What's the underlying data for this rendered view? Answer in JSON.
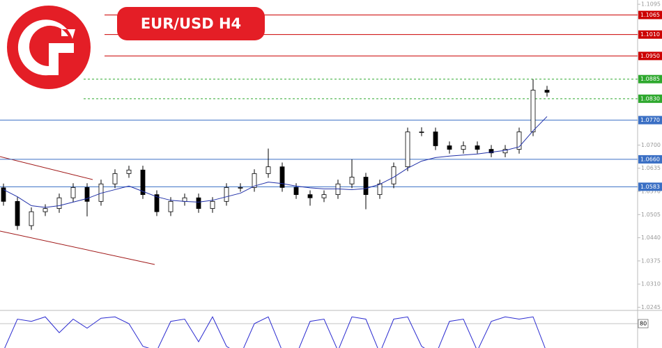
{
  "chart_data": {
    "type": "candlestick",
    "title": "EUR/USD  H4",
    "ylim": [
      1.024,
      1.1107
    ],
    "yticks": [
      {
        "value": 1.1095,
        "label": "1.1095"
      },
      {
        "value": 1.07,
        "label": "1.0700"
      },
      {
        "value": 1.0635,
        "label": "1.0635"
      },
      {
        "value": 1.057,
        "label": "1.0570"
      },
      {
        "value": 1.0505,
        "label": "1.0505"
      },
      {
        "value": 1.044,
        "label": "1.0440"
      },
      {
        "value": 1.0375,
        "label": "1.0375"
      },
      {
        "value": 1.031,
        "label": "1.0310"
      },
      {
        "value": 1.0245,
        "label": "1.0245"
      }
    ],
    "levels": [
      {
        "value": 1.1065,
        "label": "1.1065",
        "color": "#cc0000",
        "dashed": false
      },
      {
        "value": 1.101,
        "label": "1.1010",
        "color": "#cc0000",
        "dashed": false
      },
      {
        "value": 1.095,
        "label": "1.0950",
        "color": "#cc0000",
        "dashed": false
      },
      {
        "value": 1.0885,
        "label": "1.0885",
        "color": "#2ea82e",
        "dashed": true
      },
      {
        "value": 1.083,
        "label": "1.0830",
        "color": "#2ea82e",
        "dashed": true
      },
      {
        "value": 1.077,
        "label": "1.0770",
        "color": "#3a6fc4",
        "dashed": false
      },
      {
        "value": 1.066,
        "label": "1.0660",
        "color": "#3a6fc4",
        "dashed": false
      },
      {
        "value": 1.0583,
        "label": "1.0583",
        "color": "#3a6fc4",
        "dashed": false
      }
    ],
    "open": [
      1.058,
      1.0542,
      1.0474,
      1.0513,
      1.0522,
      1.0552,
      1.0581,
      1.0542,
      1.0591,
      1.062,
      1.063,
      1.0561,
      1.0513,
      1.0542,
      1.0552,
      1.0522,
      1.0542,
      1.0581,
      1.0581,
      1.062,
      1.0639,
      1.0581,
      1.0561,
      1.0552,
      1.0561,
      1.0591,
      1.061,
      1.0561,
      1.0591,
      1.0639,
      1.0737,
      1.0737,
      1.0698,
      1.0688,
      1.0698,
      1.0688,
      1.0678,
      1.0688,
      1.0737,
      1.0854
    ],
    "high": [
      1.0592,
      1.0554,
      1.0525,
      1.0534,
      1.0564,
      1.0593,
      1.0593,
      1.0603,
      1.0632,
      1.0642,
      1.0642,
      1.0573,
      1.0554,
      1.0564,
      1.0564,
      1.0554,
      1.0593,
      1.0593,
      1.0632,
      1.069,
      1.0651,
      1.0593,
      1.0573,
      1.0573,
      1.0603,
      1.066,
      1.0622,
      1.0603,
      1.0651,
      1.0749,
      1.075,
      1.0749,
      1.071,
      1.071,
      1.071,
      1.07,
      1.07,
      1.0749,
      1.0885,
      1.0866
    ],
    "low": [
      1.053,
      1.0462,
      1.0462,
      1.0501,
      1.051,
      1.054,
      1.05,
      1.053,
      1.0579,
      1.0608,
      1.0549,
      1.0501,
      1.0501,
      1.053,
      1.051,
      1.051,
      1.053,
      1.0569,
      1.0569,
      1.0608,
      1.0569,
      1.0549,
      1.053,
      1.054,
      1.0549,
      1.0579,
      1.052,
      1.0549,
      1.0579,
      1.0627,
      1.0725,
      1.0686,
      1.0676,
      1.0676,
      1.0676,
      1.0666,
      1.0666,
      1.0676,
      1.0725,
      1.0836
    ],
    "close": [
      1.0542,
      1.0474,
      1.0513,
      1.0522,
      1.0552,
      1.0581,
      1.0542,
      1.0591,
      1.062,
      1.063,
      1.0561,
      1.0513,
      1.0542,
      1.0552,
      1.0522,
      1.0542,
      1.0581,
      1.0581,
      1.062,
      1.0639,
      1.0581,
      1.0561,
      1.0552,
      1.0561,
      1.0591,
      1.061,
      1.0561,
      1.0591,
      1.0639,
      1.0737,
      1.0737,
      1.0698,
      1.0688,
      1.0698,
      1.0688,
      1.0678,
      1.0688,
      1.0737,
      1.0854,
      1.0848
    ],
    "moving_average": {
      "color": "#1f2fa8",
      "values": [
        1.0575,
        1.0555,
        1.053,
        1.0525,
        1.053,
        1.054,
        1.055,
        1.0565,
        1.0575,
        1.0585,
        1.057,
        1.0555,
        1.0545,
        1.0542,
        1.054,
        1.0545,
        1.0555,
        1.0565,
        1.0585,
        1.0596,
        1.0592,
        1.0585,
        1.058,
        1.0577,
        1.0577,
        1.0575,
        1.0578,
        1.059,
        1.061,
        1.0635,
        1.0655,
        1.0665,
        1.0669,
        1.0672,
        1.0675,
        1.068,
        1.0685,
        1.0695,
        1.074,
        1.078
      ]
    },
    "oscillator": {
      "color": "#2b2bd0",
      "ylim": [
        0,
        100
      ],
      "level": {
        "value": 80,
        "label": "80"
      },
      "values": [
        20,
        90,
        85,
        95,
        60,
        90,
        70,
        92,
        95,
        80,
        30,
        20,
        85,
        90,
        40,
        95,
        30,
        10,
        80,
        95,
        20,
        10,
        85,
        90,
        20,
        95,
        90,
        15,
        90,
        95,
        30,
        10,
        85,
        90,
        20,
        85,
        95,
        90,
        95,
        15
      ]
    }
  }
}
